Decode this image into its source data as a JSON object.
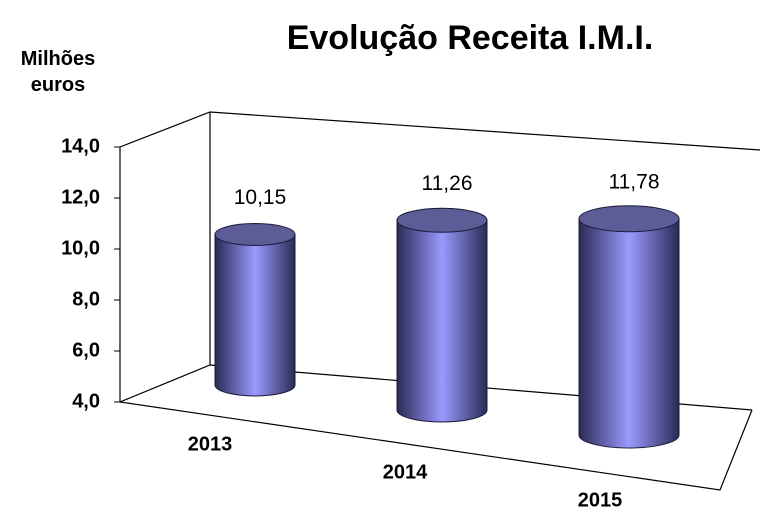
{
  "chart_data": {
    "type": "cylinder",
    "title": "Evolução Receita I.M.I.",
    "y_axis_label": "Milhões euros",
    "categories": [
      "2013",
      "2014",
      "2015"
    ],
    "values": [
      10.15,
      11.26,
      11.78
    ],
    "value_labels": [
      "10,15",
      "11,26",
      "11,78"
    ],
    "color": "#8080f0",
    "ylim": [
      4,
      14
    ],
    "yticks": [
      {
        "value": 4,
        "label": "4,0"
      },
      {
        "value": 6,
        "label": "6,0"
      },
      {
        "value": 8,
        "label": "8,0"
      },
      {
        "value": 10,
        "label": "10,0"
      },
      {
        "value": 12,
        "label": "12,0"
      },
      {
        "value": 14,
        "label": "14,0"
      }
    ],
    "grid": false
  }
}
